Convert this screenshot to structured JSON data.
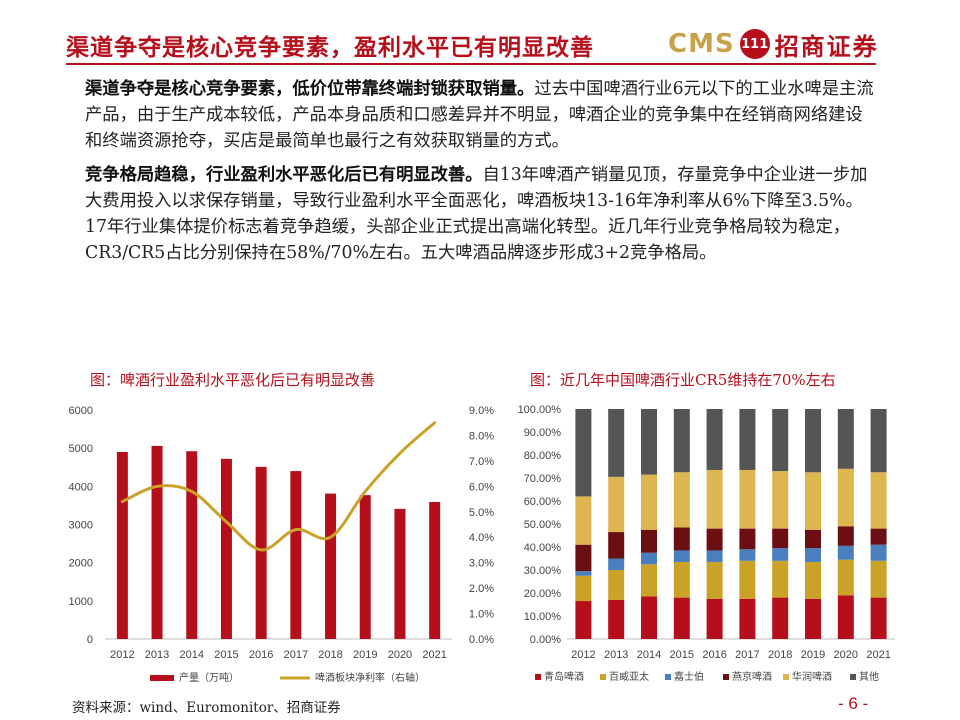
{
  "header": {
    "title": "渠道争夺是核心竞争要素，盈利水平已有明显改善",
    "logo_cms": "CMS",
    "logo_badge": "111",
    "logo_name": "招商证券"
  },
  "body": {
    "p1_bold": "渠道争夺是核心竞争要素，低价位带靠终端封锁获取销量。",
    "p1_text": "过去中国啤酒行业6元以下的工业水啤是主流产品，由于生产成本较低，产品本身品质和口感差异并不明显，啤酒企业的竞争集中在经销商网络建设和终端资源抢夺，买店是最简单也最行之有效获取销量的方式。",
    "p2_bold": "竞争格局趋稳，行业盈利水平恶化后已有明显改善。",
    "p2_text": "自13年啤酒产销量见顶，存量竞争中企业进一步加大费用投入以求保存销量，导致行业盈利水平全面恶化，啤酒板块13-16年净利率从6%下降至3.5%。17年行业集体提价标志着竞争趋缓，头部企业正式提出高端化转型。近几年行业竞争格局较为稳定，CR3/CR5占比分别保持在58%/70%左右。五大啤酒品牌逐步形成3+2竞争格局。"
  },
  "chart_titles": {
    "left": "图：啤酒行业盈利水平恶化后已有明显改善",
    "right": "图：近几年中国啤酒行业CR5维持在70%左右"
  },
  "colors": {
    "brand_red": "#b50f1c",
    "bar_red": "#b50f1c",
    "line_gold": "#c9a227",
    "qingdao": "#b50f1c",
    "baiwei": "#c9a227",
    "jiashibo": "#4a7fbf",
    "yanjing": "#6b0f12",
    "huarun": "#ddb651",
    "other": "#555555"
  },
  "chart_data": [
    {
      "type": "bar+line",
      "categories": [
        "2012",
        "2013",
        "2014",
        "2015",
        "2016",
        "2017",
        "2018",
        "2019",
        "2020",
        "2021"
      ],
      "series": [
        {
          "name": "产量（万吨）",
          "kind": "bar",
          "axis": "left",
          "values": [
            4900,
            5060,
            4920,
            4720,
            4510,
            4400,
            3810,
            3770,
            3410,
            3590
          ]
        },
        {
          "name": "啤酒板块净利率（右轴）",
          "kind": "line",
          "axis": "right",
          "values": [
            5.4,
            6.0,
            5.8,
            4.6,
            3.5,
            4.3,
            4.0,
            5.8,
            7.3,
            8.5
          ]
        }
      ],
      "ylim_left": [
        0,
        6000
      ],
      "yticks_left": [
        "0",
        "1000",
        "2000",
        "3000",
        "4000",
        "5000",
        "6000"
      ],
      "ylim_right": [
        0,
        9
      ],
      "yticks_right": [
        "0.0%",
        "1.0%",
        "2.0%",
        "3.0%",
        "4.0%",
        "5.0%",
        "6.0%",
        "7.0%",
        "8.0%",
        "9.0%"
      ]
    },
    {
      "type": "bar",
      "stacked": true,
      "categories": [
        "2012",
        "2013",
        "2014",
        "2015",
        "2016",
        "2017",
        "2018",
        "2019",
        "2020",
        "2021"
      ],
      "series": [
        {
          "name": "青岛啤酒",
          "values": [
            16.5,
            17.0,
            18.5,
            18.0,
            17.5,
            17.5,
            18.0,
            17.5,
            19.0,
            18.0
          ]
        },
        {
          "name": "百威亚太",
          "values": [
            11.0,
            13.0,
            14.0,
            15.5,
            16.0,
            16.5,
            16.0,
            16.0,
            15.5,
            16.0
          ]
        },
        {
          "name": "嘉士伯",
          "values": [
            2.0,
            5.0,
            5.0,
            5.0,
            5.0,
            5.0,
            5.5,
            6.0,
            6.0,
            7.0
          ]
        },
        {
          "name": "燕京啤酒",
          "values": [
            11.5,
            11.5,
            10.0,
            10.0,
            9.5,
            9.0,
            8.5,
            8.0,
            8.5,
            7.0
          ]
        },
        {
          "name": "华润啤酒",
          "values": [
            21.0,
            24.0,
            24.0,
            24.0,
            25.5,
            25.5,
            25.0,
            25.0,
            25.0,
            24.5
          ]
        },
        {
          "name": "其他",
          "values": [
            38.0,
            29.5,
            28.5,
            27.5,
            26.5,
            26.5,
            27.0,
            27.5,
            26.0,
            27.5
          ]
        }
      ],
      "ylim": [
        0,
        100
      ],
      "yticks": [
        "0.00%",
        "10.00%",
        "20.00%",
        "30.00%",
        "40.00%",
        "50.00%",
        "60.00%",
        "70.00%",
        "80.00%",
        "90.00%",
        "100.00%"
      ]
    }
  ],
  "footer": {
    "source": "资料来源：wind、Euromonitor、招商证券",
    "page": "- 6 -"
  }
}
